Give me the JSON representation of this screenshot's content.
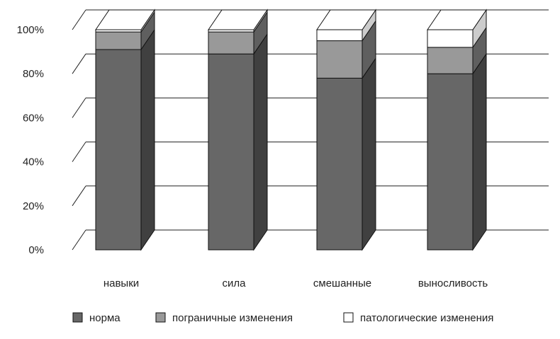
{
  "chart_data": {
    "type": "bar",
    "stacked": true,
    "three_d": true,
    "categories": [
      "навыки",
      "сила",
      "смешанные",
      "выносливость"
    ],
    "series": [
      {
        "name": "норма",
        "values": [
          91,
          89,
          78,
          80
        ],
        "color": "#676767"
      },
      {
        "name": "пограничные изменения",
        "values": [
          8,
          10,
          17,
          12
        ],
        "color": "#999999"
      },
      {
        "name": "патологические изменения",
        "values": [
          1,
          1,
          5,
          8
        ],
        "color": "#ffffff"
      }
    ],
    "y_ticks": [
      "0%",
      "20%",
      "40%",
      "60%",
      "80%",
      "100%"
    ],
    "ylim": [
      0,
      100
    ],
    "grid": true,
    "legend_position": "bottom"
  }
}
